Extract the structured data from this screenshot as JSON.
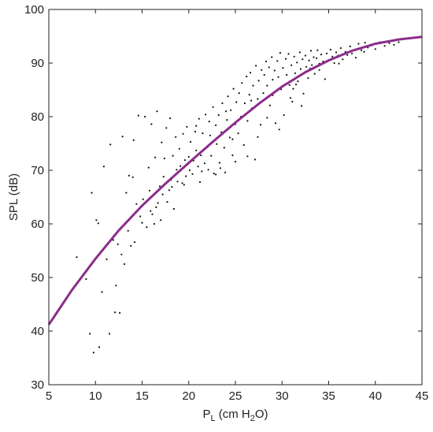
{
  "chart_data": {
    "type": "scatter",
    "title": "",
    "xlabel": {
      "main": "P",
      "sub1": "L",
      "mid": " (cm H",
      "sub2": "2",
      "end": "O)"
    },
    "ylabel": "SPL (dB)",
    "xlim": [
      5,
      45
    ],
    "ylim": [
      30,
      100
    ],
    "xticks": [
      5,
      10,
      15,
      20,
      25,
      30,
      35,
      40,
      45
    ],
    "yticks": [
      30,
      40,
      50,
      60,
      70,
      80,
      90,
      100
    ],
    "grid": false,
    "legend": "none",
    "colors": {
      "points": "#111111",
      "fit": "#8b2c8b",
      "axis": "#222222"
    },
    "fit_curve": {
      "x": [
        5,
        7.5,
        10,
        12.5,
        15,
        17.5,
        20,
        22.5,
        25,
        27.5,
        30,
        32.5,
        35,
        37.5,
        40,
        42.5,
        45
      ],
      "y": [
        41.2,
        47.7,
        53.5,
        58.8,
        63.4,
        67.5,
        71.4,
        75.2,
        78.9,
        82.4,
        85.6,
        88.3,
        90.5,
        92.3,
        93.6,
        94.4,
        94.9
      ]
    },
    "points": [
      [
        8.0,
        53.8
      ],
      [
        9.0,
        49.7
      ],
      [
        9.4,
        39.5
      ],
      [
        9.6,
        65.8
      ],
      [
        9.8,
        36.0
      ],
      [
        10.1,
        60.7
      ],
      [
        10.3,
        60.1
      ],
      [
        10.4,
        37.0
      ],
      [
        10.7,
        47.3
      ],
      [
        10.9,
        70.7
      ],
      [
        11.2,
        53.4
      ],
      [
        11.5,
        39.5
      ],
      [
        11.6,
        74.8
      ],
      [
        11.9,
        57.0
      ],
      [
        12.1,
        43.5
      ],
      [
        12.2,
        48.5
      ],
      [
        12.4,
        56.2
      ],
      [
        12.6,
        43.4
      ],
      [
        12.8,
        54.3
      ],
      [
        12.9,
        76.3
      ],
      [
        13.1,
        52.5
      ],
      [
        13.3,
        65.8
      ],
      [
        13.5,
        58.7
      ],
      [
        13.6,
        69.0
      ],
      [
        13.8,
        55.9
      ],
      [
        14.0,
        68.7
      ],
      [
        14.1,
        75.6
      ],
      [
        14.2,
        56.6
      ],
      [
        14.4,
        63.7
      ],
      [
        14.6,
        80.2
      ],
      [
        14.8,
        61.4
      ],
      [
        15.0,
        60.2
      ],
      [
        15.1,
        64.6
      ],
      [
        15.3,
        80.0
      ],
      [
        15.5,
        59.4
      ],
      [
        15.7,
        70.5
      ],
      [
        15.8,
        66.2
      ],
      [
        16.0,
        78.6
      ],
      [
        16.1,
        61.8
      ],
      [
        16.3,
        60.0
      ],
      [
        16.4,
        72.4
      ],
      [
        16.6,
        81.0
      ],
      [
        16.7,
        63.9
      ],
      [
        16.9,
        67.0
      ],
      [
        17.0,
        60.7
      ],
      [
        17.1,
        75.2
      ],
      [
        17.3,
        68.8
      ],
      [
        17.4,
        72.2
      ],
      [
        17.6,
        77.9
      ],
      [
        17.7,
        64.1
      ],
      [
        17.9,
        66.3
      ],
      [
        18.0,
        79.7
      ],
      [
        18.1,
        68.2
      ],
      [
        18.3,
        72.7
      ],
      [
        18.4,
        62.8
      ],
      [
        18.6,
        76.2
      ],
      [
        18.7,
        70.1
      ],
      [
        18.8,
        67.9
      ],
      [
        19.0,
        74.0
      ],
      [
        19.1,
        70.8
      ],
      [
        19.3,
        67.6
      ],
      [
        19.4,
        76.8
      ],
      [
        19.6,
        71.9
      ],
      [
        19.7,
        68.9
      ],
      [
        19.8,
        78.1
      ],
      [
        20.0,
        72.5
      ],
      [
        20.1,
        70.0
      ],
      [
        20.2,
        75.3
      ],
      [
        20.4,
        69.3
      ],
      [
        20.5,
        71.8
      ],
      [
        20.7,
        77.2
      ],
      [
        20.8,
        73.7
      ],
      [
        21.0,
        70.7
      ],
      [
        21.1,
        79.6
      ],
      [
        21.3,
        72.8
      ],
      [
        21.4,
        69.8
      ],
      [
        21.5,
        76.9
      ],
      [
        21.7,
        71.3
      ],
      [
        21.8,
        80.4
      ],
      [
        22.0,
        74.3
      ],
      [
        22.1,
        70.1
      ],
      [
        22.3,
        76.5
      ],
      [
        22.4,
        72.7
      ],
      [
        22.6,
        81.8
      ],
      [
        22.7,
        69.4
      ],
      [
        22.9,
        78.4
      ],
      [
        23.0,
        74.9
      ],
      [
        23.2,
        80.3
      ],
      [
        23.3,
        71.4
      ],
      [
        23.5,
        77.1
      ],
      [
        23.6,
        82.5
      ],
      [
        23.8,
        74.2
      ],
      [
        23.9,
        69.6
      ],
      [
        24.1,
        79.4
      ],
      [
        24.2,
        83.8
      ],
      [
        24.4,
        76.1
      ],
      [
        24.5,
        81.2
      ],
      [
        24.7,
        72.8
      ],
      [
        24.8,
        85.2
      ],
      [
        25.0,
        78.6
      ],
      [
        25.1,
        82.7
      ],
      [
        25.3,
        76.9
      ],
      [
        25.4,
        84.4
      ],
      [
        25.6,
        80.0
      ],
      [
        25.7,
        86.3
      ],
      [
        25.9,
        74.7
      ],
      [
        26.0,
        82.5
      ],
      [
        26.2,
        87.5
      ],
      [
        26.3,
        79.2
      ],
      [
        26.5,
        84.1
      ],
      [
        26.6,
        88.2
      ],
      [
        26.8,
        81.6
      ],
      [
        26.9,
        85.8
      ],
      [
        27.1,
        72.0
      ],
      [
        27.2,
        89.5
      ],
      [
        27.4,
        83.3
      ],
      [
        27.5,
        86.7
      ],
      [
        27.7,
        78.5
      ],
      [
        27.8,
        88.7
      ],
      [
        28.0,
        84.4
      ],
      [
        28.1,
        87.8
      ],
      [
        28.3,
        90.3
      ],
      [
        28.4,
        85.8
      ],
      [
        28.6,
        89.2
      ],
      [
        28.7,
        82.1
      ],
      [
        28.9,
        91.1
      ],
      [
        29.0,
        86.9
      ],
      [
        29.2,
        88.6
      ],
      [
        29.3,
        78.8
      ],
      [
        29.5,
        90.4
      ],
      [
        29.6,
        87.4
      ],
      [
        29.8,
        91.9
      ],
      [
        29.9,
        85.1
      ],
      [
        30.1,
        89.1
      ],
      [
        30.2,
        80.3
      ],
      [
        30.4,
        90.8
      ],
      [
        30.5,
        87.8
      ],
      [
        30.7,
        91.7
      ],
      [
        30.8,
        85.9
      ],
      [
        31.0,
        89.6
      ],
      [
        31.1,
        82.8
      ],
      [
        31.3,
        91.2
      ],
      [
        31.4,
        88.1
      ],
      [
        31.6,
        90.1
      ],
      [
        31.7,
        86.6
      ],
      [
        31.9,
        92.0
      ],
      [
        32.0,
        88.9
      ],
      [
        32.2,
        90.7
      ],
      [
        32.3,
        84.3
      ],
      [
        32.5,
        91.4
      ],
      [
        32.6,
        89.3
      ],
      [
        32.8,
        87.2
      ],
      [
        32.9,
        90.5
      ],
      [
        33.1,
        92.3
      ],
      [
        33.2,
        89.6
      ],
      [
        33.4,
        91.1
      ],
      [
        33.5,
        88.0
      ],
      [
        33.7,
        90.9
      ],
      [
        33.8,
        92.4
      ],
      [
        34.0,
        89.9
      ],
      [
        34.2,
        91.6
      ],
      [
        34.4,
        90.3
      ],
      [
        34.6,
        87.0
      ],
      [
        34.8,
        91.8
      ],
      [
        35.0,
        90.5
      ],
      [
        35.2,
        92.5
      ],
      [
        35.4,
        91.2
      ],
      [
        35.6,
        90.0
      ],
      [
        35.8,
        92.0
      ],
      [
        36.0,
        91.4
      ],
      [
        36.3,
        92.8
      ],
      [
        36.5,
        90.7
      ],
      [
        36.8,
        92.1
      ],
      [
        37.0,
        91.5
      ],
      [
        37.3,
        93.1
      ],
      [
        37.6,
        92.3
      ],
      [
        37.9,
        91.0
      ],
      [
        38.2,
        93.6
      ],
      [
        38.5,
        92.4
      ],
      [
        38.9,
        93.8
      ],
      [
        39.2,
        92.9
      ],
      [
        39.6,
        93.3
      ],
      [
        40.0,
        92.6
      ],
      [
        40.5,
        93.9
      ],
      [
        41.0,
        93.2
      ],
      [
        41.5,
        93.7
      ],
      [
        42.0,
        93.4
      ],
      [
        42.5,
        93.9
      ],
      [
        26.3,
        72.6
      ],
      [
        24.7,
        75.8
      ],
      [
        22.9,
        69.2
      ],
      [
        21.2,
        67.8
      ],
      [
        19.5,
        67.3
      ],
      [
        18.2,
        66.9
      ],
      [
        30.9,
        83.5
      ],
      [
        29.7,
        77.6
      ],
      [
        32.1,
        82.0
      ],
      [
        28.4,
        79.8
      ],
      [
        17.2,
        65.5
      ],
      [
        16.5,
        63.1
      ],
      [
        15.9,
        62.4
      ],
      [
        23.4,
        70.4
      ],
      [
        25.0,
        71.6
      ],
      [
        27.4,
        76.2
      ],
      [
        31.5,
        86.0
      ],
      [
        33.0,
        89.0
      ],
      [
        34.0,
        88.7
      ],
      [
        20.8,
        78.3
      ],
      [
        22.2,
        79.1
      ],
      [
        24.0,
        81.0
      ],
      [
        26.7,
        83.0
      ],
      [
        29.0,
        84.0
      ],
      [
        31.2,
        85.2
      ],
      [
        36.1,
        89.9
      ],
      [
        37.5,
        91.8
      ],
      [
        38.8,
        92.1
      ]
    ]
  }
}
